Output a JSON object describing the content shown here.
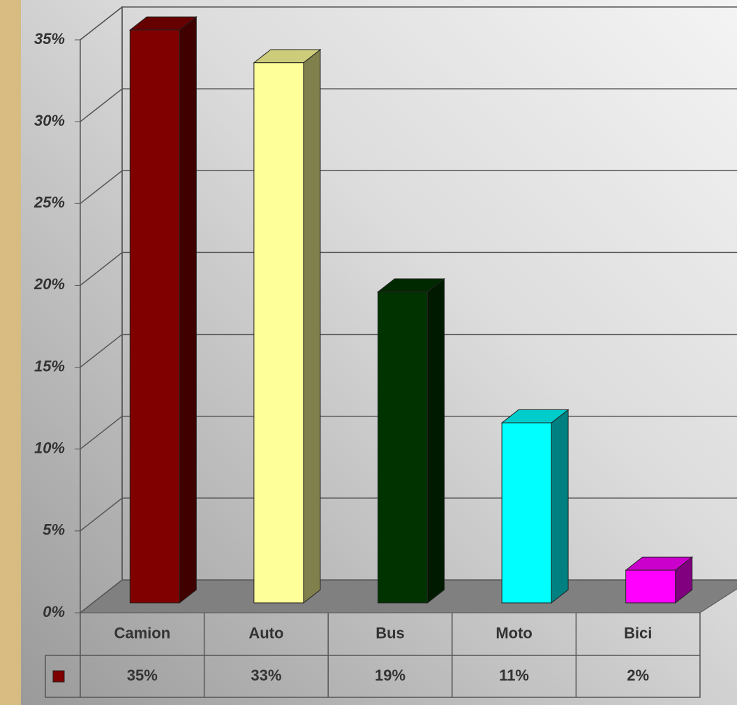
{
  "chart_data": {
    "type": "bar3d",
    "categories": [
      "Camion",
      "Auto",
      "Bus",
      "Moto",
      "Bici"
    ],
    "series": [
      {
        "color": "#800000",
        "values": [
          35,
          33,
          19,
          11,
          2
        ],
        "value_labels": [
          "35%",
          "33%",
          "19%",
          "11%",
          "2%"
        ]
      }
    ],
    "bar_colors": [
      "#800000",
      "#ffff99",
      "#003300",
      "#00ffff",
      "#ff00ff"
    ],
    "ylim": [
      0,
      35
    ],
    "yticks": [
      {
        "value": 0,
        "label": "0%"
      },
      {
        "value": 5,
        "label": "5%"
      },
      {
        "value": 10,
        "label": "10%"
      },
      {
        "value": 15,
        "label": "15%"
      },
      {
        "value": 20,
        "label": "20%"
      },
      {
        "value": 25,
        "label": "25%"
      },
      {
        "value": 30,
        "label": "30%"
      },
      {
        "value": 35,
        "label": "35%"
      }
    ],
    "grid": true,
    "data_table": true
  }
}
